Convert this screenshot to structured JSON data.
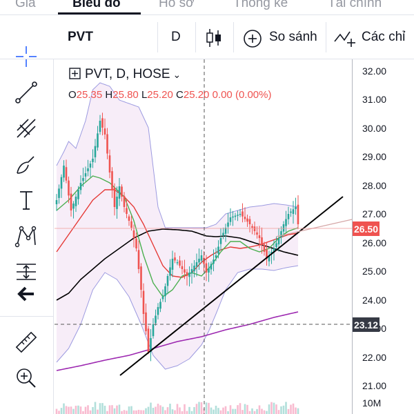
{
  "top_tabs": [
    {
      "label": "Giá",
      "active": false
    },
    {
      "label": "Biểu đồ",
      "active": true
    },
    {
      "label": "Hồ sơ",
      "active": false
    },
    {
      "label": "Thống kê",
      "active": false
    },
    {
      "label": "Tài chính",
      "active": false
    }
  ],
  "toolbar": {
    "symbol": "PVT",
    "interval": "D",
    "candle_icon": "candlestick-icon",
    "compare_label": "So sánh",
    "indicators_label": "Các chỉ"
  },
  "left_tools": [
    {
      "name": "crosshair-icon"
    },
    {
      "name": "trend-line-icon"
    },
    {
      "name": "pitchfork-icon"
    },
    {
      "name": "brush-icon"
    },
    {
      "name": "text-tool-icon"
    },
    {
      "name": "pattern-icon"
    },
    {
      "name": "measure-position-icon"
    },
    {
      "name": "back-arrow-icon"
    },
    {
      "name": "ruler-icon"
    },
    {
      "name": "zoom-in-icon"
    }
  ],
  "legend": {
    "title": "PVT, D, HOSE",
    "open_label": "O",
    "open": "25.35",
    "high_label": "H",
    "high": "25.80",
    "low_label": "L",
    "low": "25.20",
    "close_label": "C",
    "close": "25.20",
    "change": "0.00",
    "change_pct": "(0.00%)"
  },
  "price_axis": {
    "ticks": [
      "32.00",
      "31.00",
      "30.00",
      "29.00",
      "28.00",
      "27.00",
      "26.00",
      "25.00",
      "24.00",
      "23.00",
      "22.00",
      "21.00"
    ],
    "current_price": "26.50",
    "current_price_color": "#ef5350",
    "crosshair_price": "23.12",
    "crosshair_color": "#363a45",
    "volume_label": "10M"
  },
  "colors": {
    "up": "#26a69a",
    "down": "#ef5350",
    "bollinger": "#9c9ae0",
    "bollinger_fill": "#f3e5f5",
    "ma_fast": "#4caf50",
    "ma_mid": "#e53935",
    "ma_slow": "#000000",
    "ma_long": "#9c27b0"
  }
}
